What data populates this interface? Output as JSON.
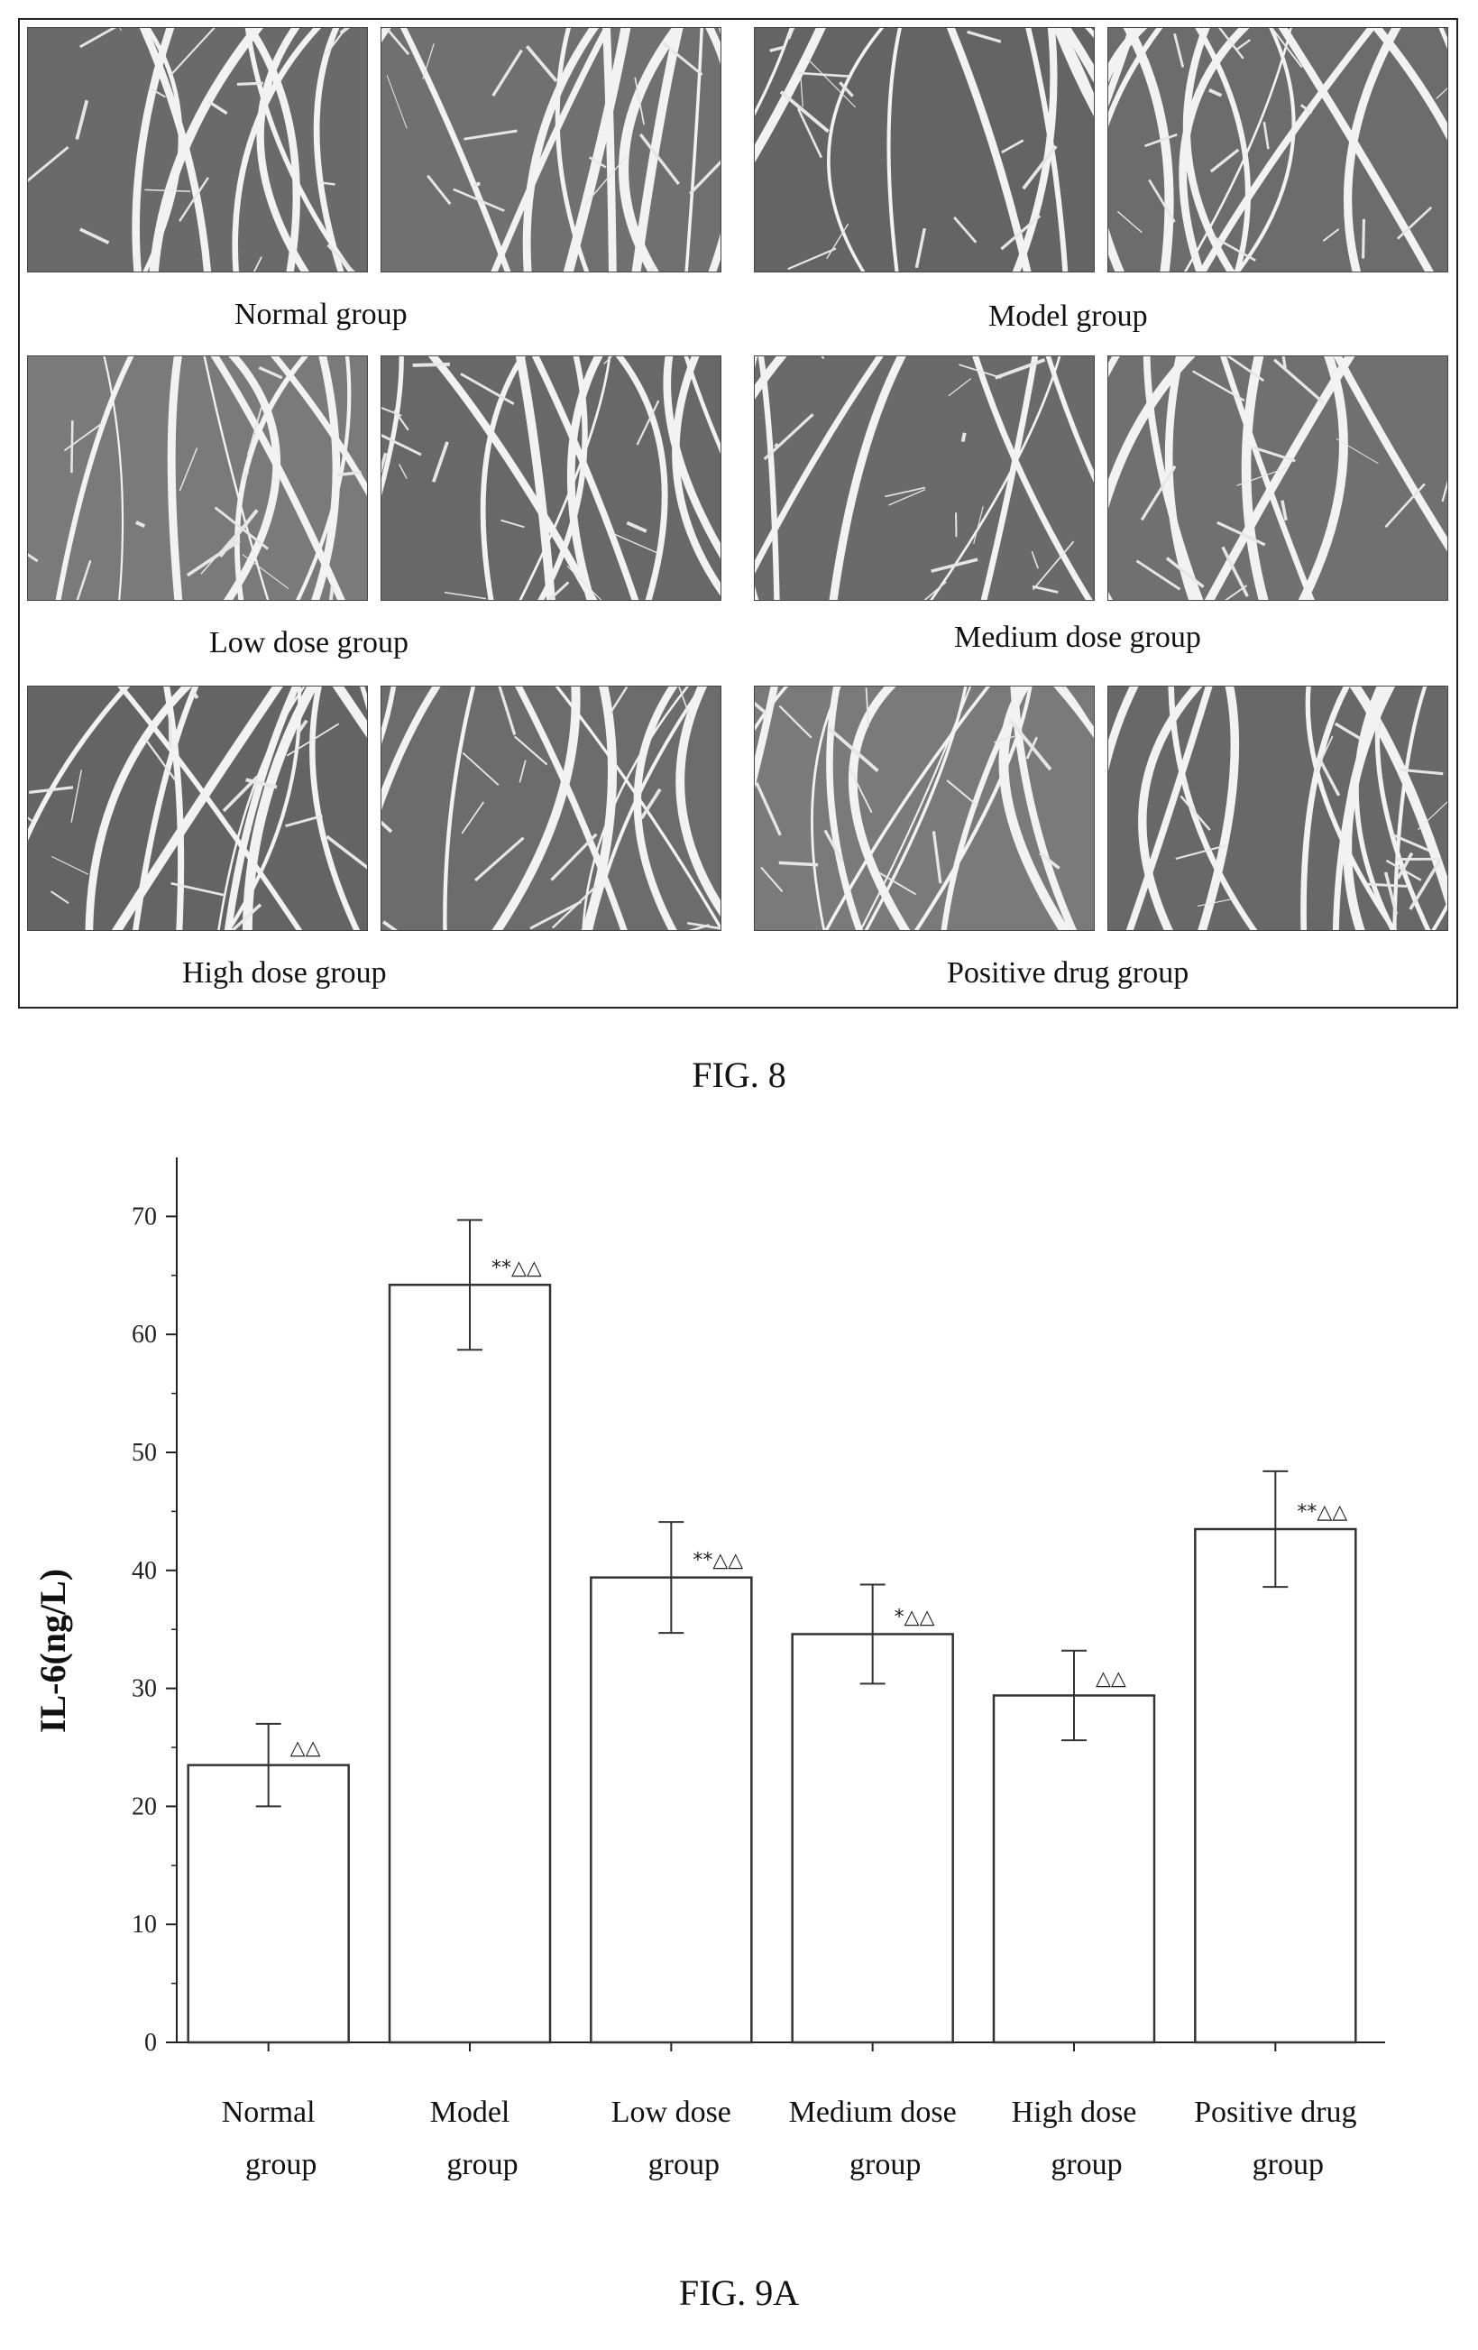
{
  "fig8": {
    "label": "FIG. 8",
    "captions": [
      "Normal group",
      "Model group",
      "Low dose group",
      "Medium dose group",
      "High dose group",
      "Positive drug group"
    ]
  },
  "fig9a": {
    "label": "FIG. 9A"
  },
  "chart_data": {
    "type": "bar",
    "title": "",
    "xlabel": "",
    "ylabel": "IL-6(ng/L)",
    "ylim": [
      0,
      75
    ],
    "yticks": [
      0,
      10,
      20,
      30,
      40,
      50,
      60,
      70
    ],
    "categories": [
      [
        "Normal",
        "group"
      ],
      [
        "Model",
        "group"
      ],
      [
        "Low dose",
        "group"
      ],
      [
        "Medium dose",
        "group"
      ],
      [
        "High dose",
        "group"
      ],
      [
        "Positive drug",
        "group"
      ]
    ],
    "values": [
      23.5,
      64.2,
      39.4,
      34.6,
      29.4,
      43.5
    ],
    "errors": [
      3.5,
      5.5,
      4.7,
      4.2,
      3.8,
      4.9
    ],
    "significance": [
      "△△",
      "**△△",
      "**△△",
      "*△△",
      "△△",
      "**△△"
    ],
    "grid": false,
    "bar_fill": "#ffffff",
    "bar_stroke": "#333333"
  }
}
